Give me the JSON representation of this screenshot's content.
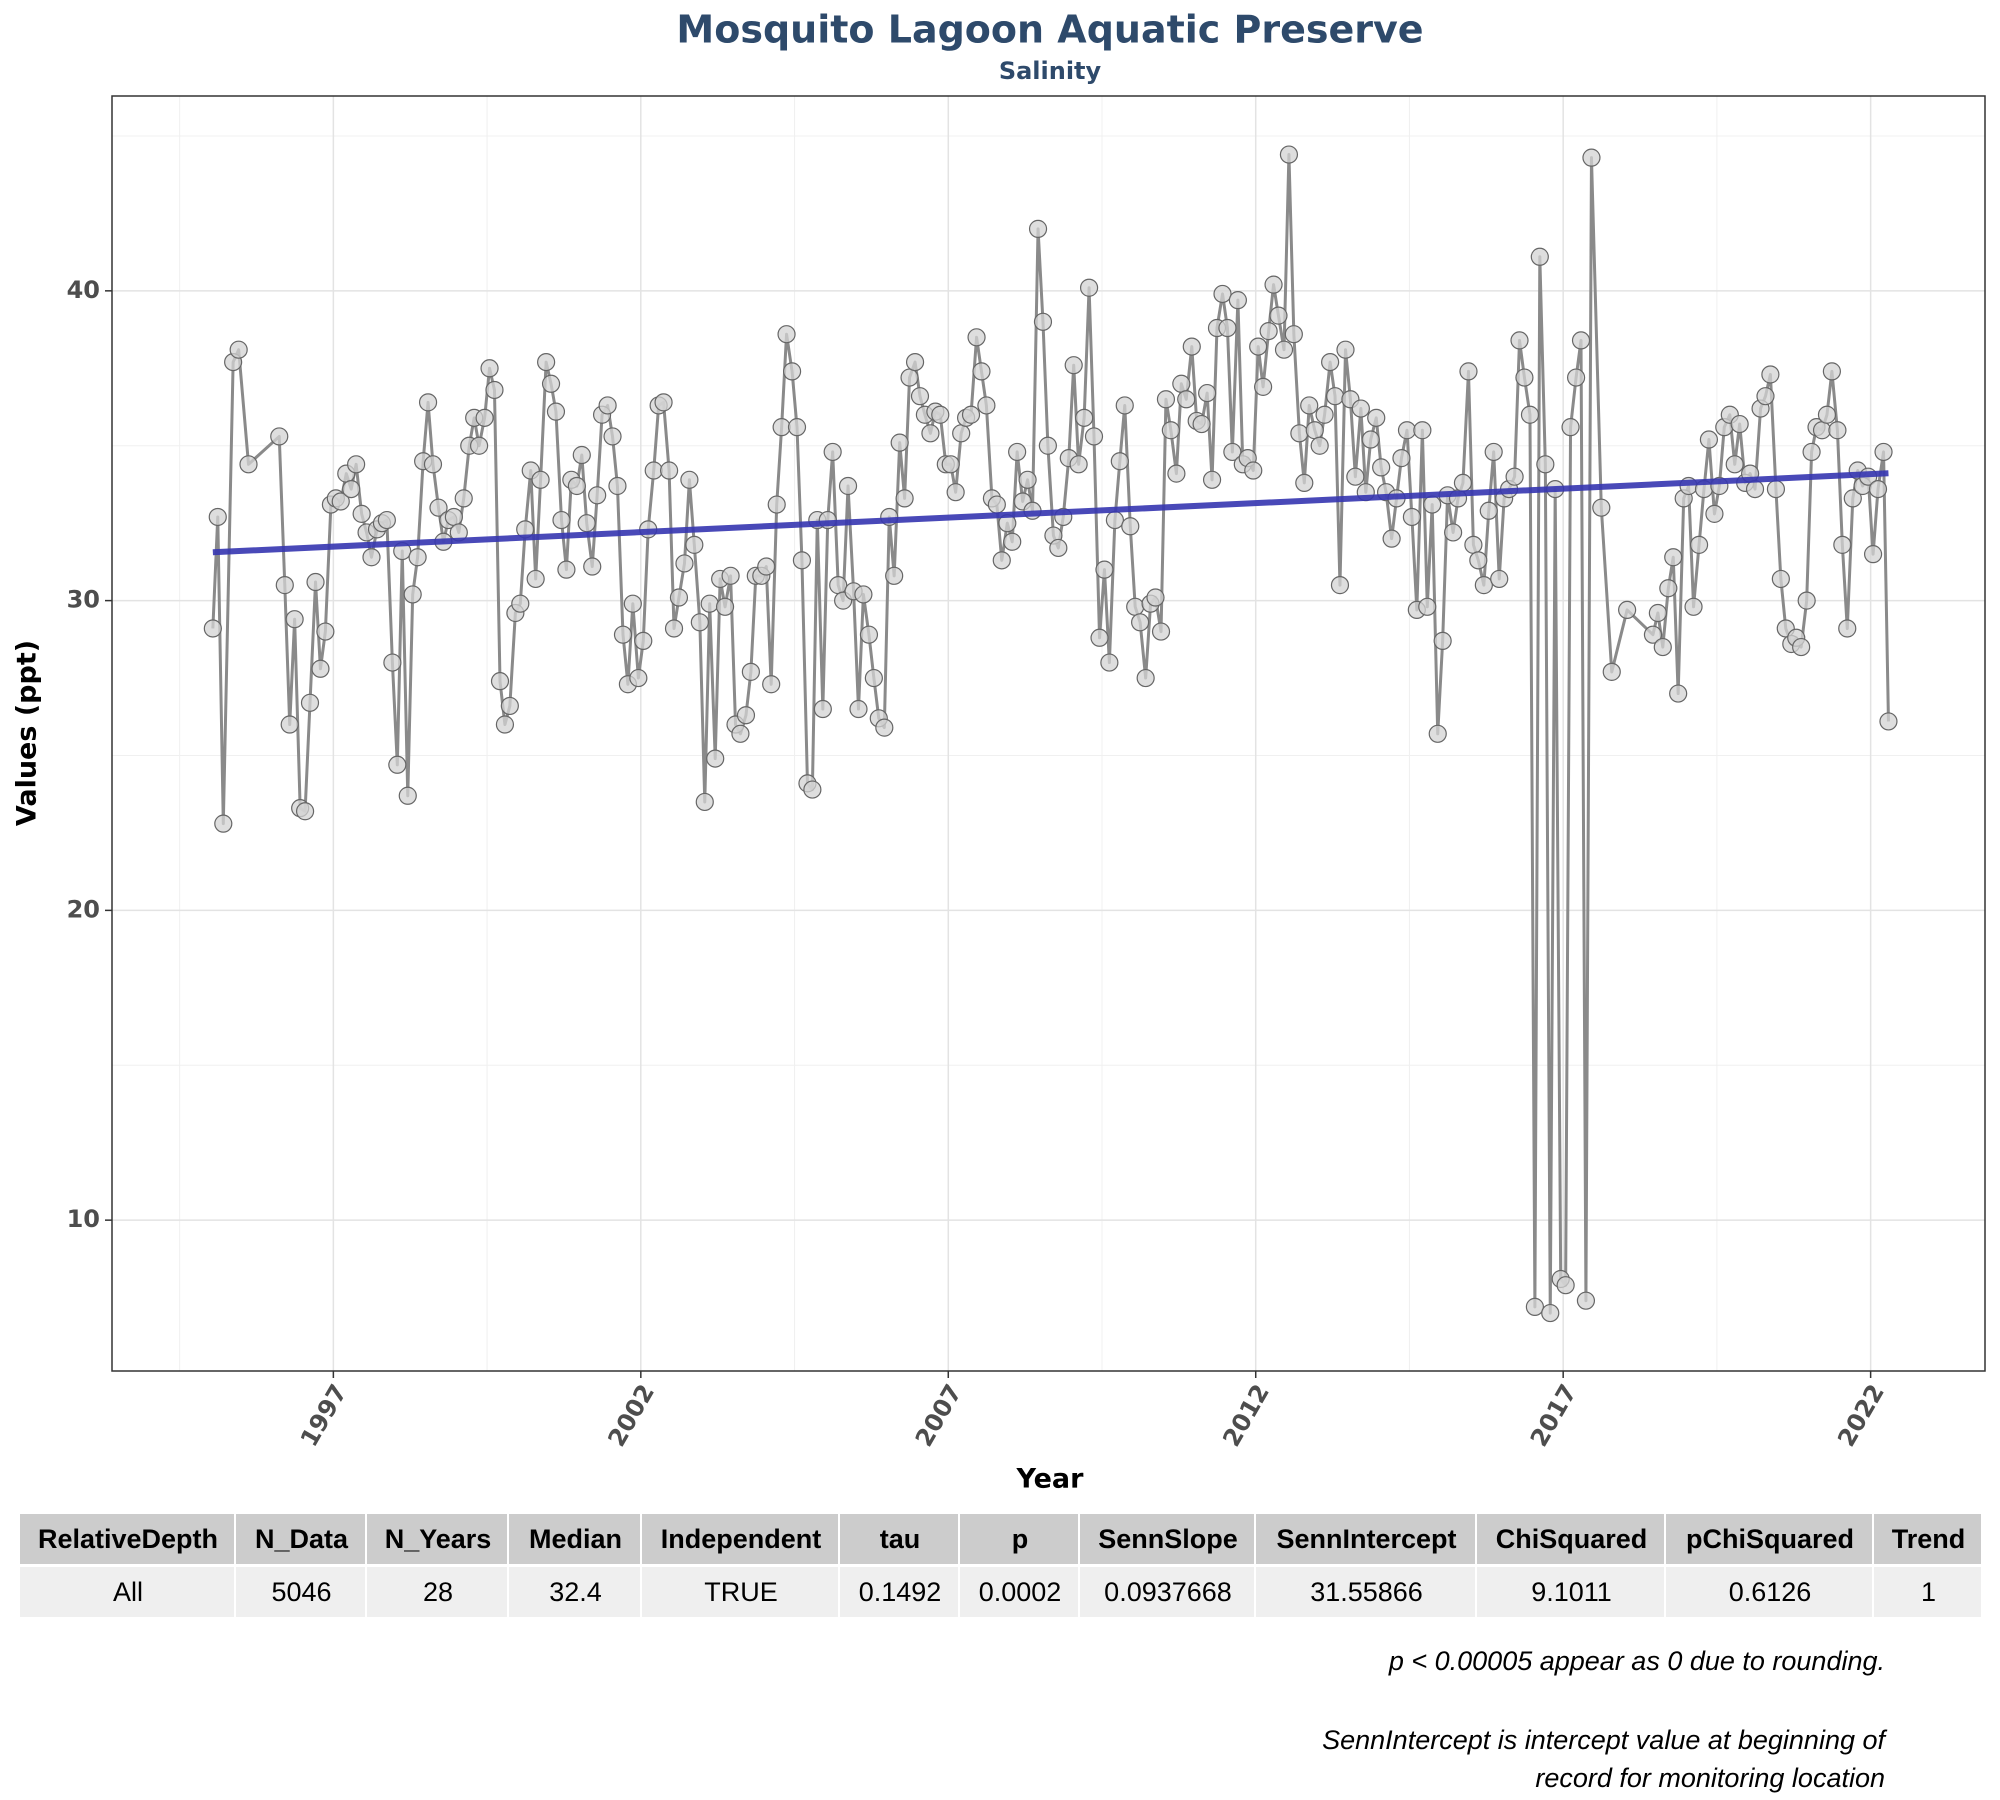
{
  "chart_data": {
    "type": "line",
    "title": "Mosquito Lagoon Aquatic Preserve",
    "subtitle": "Salinity",
    "x_label": "Year",
    "y_label": "Values (ppt)",
    "xlim": [
      1993.4,
      2023.86
    ],
    "ylim": [
      5.13,
      46.29
    ],
    "xticks": [
      1997,
      2002,
      2007,
      2012,
      2017,
      2022
    ],
    "yticks": [
      10,
      20,
      30,
      40
    ],
    "minor_xticks": [
      1994.5,
      1999.5,
      2004.5,
      2009.5,
      2014.5,
      2019.5
    ],
    "minor_yticks": [
      15,
      25,
      35,
      45
    ],
    "grid": true,
    "series": [
      {
        "color": "#8a8a8a",
        "marker_color": "#d3d3d3",
        "x": [
          1995.04,
          1995.12,
          1995.21,
          1995.37,
          1995.46,
          1995.62,
          1996.12,
          1996.21,
          1996.29,
          1996.37,
          1996.46,
          1996.54,
          1996.62,
          1996.71,
          1996.79,
          1996.87,
          1996.96,
          1997.04,
          1997.12,
          1997.21,
          1997.29,
          1997.37,
          1997.46,
          1997.54,
          1997.62,
          1997.71,
          1997.79,
          1997.87,
          1997.96,
          1998.04,
          1998.12,
          1998.21,
          1998.29,
          1998.37,
          1998.46,
          1998.54,
          1998.62,
          1998.71,
          1998.79,
          1998.87,
          1998.96,
          1999.04,
          1999.12,
          1999.21,
          1999.29,
          1999.37,
          1999.46,
          1999.54,
          1999.62,
          1999.71,
          1999.79,
          1999.87,
          1999.96,
          2000.04,
          2000.12,
          2000.21,
          2000.29,
          2000.37,
          2000.46,
          2000.54,
          2000.62,
          2000.71,
          2000.79,
          2000.87,
          2000.96,
          2001.04,
          2001.12,
          2001.21,
          2001.29,
          2001.37,
          2001.46,
          2001.54,
          2001.62,
          2001.71,
          2001.79,
          2001.87,
          2001.96,
          2002.04,
          2002.12,
          2002.21,
          2002.29,
          2002.37,
          2002.46,
          2002.54,
          2002.62,
          2002.71,
          2002.79,
          2002.87,
          2002.96,
          2003.04,
          2003.12,
          2003.21,
          2003.29,
          2003.37,
          2003.46,
          2003.54,
          2003.62,
          2003.71,
          2003.79,
          2003.87,
          2003.96,
          2004.04,
          2004.12,
          2004.21,
          2004.29,
          2004.37,
          2004.46,
          2004.54,
          2004.62,
          2004.71,
          2004.79,
          2004.87,
          2004.96,
          2005.04,
          2005.12,
          2005.21,
          2005.29,
          2005.37,
          2005.46,
          2005.54,
          2005.62,
          2005.71,
          2005.79,
          2005.87,
          2005.96,
          2006.04,
          2006.12,
          2006.21,
          2006.29,
          2006.37,
          2006.46,
          2006.54,
          2006.62,
          2006.71,
          2006.79,
          2006.87,
          2006.96,
          2007.04,
          2007.12,
          2007.21,
          2007.29,
          2007.37,
          2007.46,
          2007.54,
          2007.62,
          2007.71,
          2007.79,
          2007.87,
          2007.96,
          2008.04,
          2008.12,
          2008.21,
          2008.29,
          2008.37,
          2008.46,
          2008.54,
          2008.62,
          2008.71,
          2008.79,
          2008.87,
          2008.96,
          2009.04,
          2009.12,
          2009.21,
          2009.29,
          2009.37,
          2009.46,
          2009.54,
          2009.62,
          2009.71,
          2009.79,
          2009.87,
          2009.96,
          2010.04,
          2010.12,
          2010.21,
          2010.29,
          2010.37,
          2010.46,
          2010.54,
          2010.62,
          2010.71,
          2010.79,
          2010.87,
          2010.96,
          2011.04,
          2011.12,
          2011.21,
          2011.29,
          2011.37,
          2011.46,
          2011.54,
          2011.62,
          2011.71,
          2011.79,
          2011.87,
          2011.96,
          2012.04,
          2012.12,
          2012.21,
          2012.29,
          2012.37,
          2012.46,
          2012.54,
          2012.62,
          2012.71,
          2012.79,
          2012.87,
          2012.96,
          2013.04,
          2013.12,
          2013.21,
          2013.29,
          2013.37,
          2013.46,
          2013.54,
          2013.62,
          2013.71,
          2013.79,
          2013.87,
          2013.96,
          2014.04,
          2014.12,
          2014.21,
          2014.29,
          2014.37,
          2014.46,
          2014.54,
          2014.62,
          2014.71,
          2014.79,
          2014.87,
          2014.96,
          2015.04,
          2015.12,
          2015.21,
          2015.29,
          2015.37,
          2015.46,
          2015.54,
          2015.62,
          2015.71,
          2015.79,
          2015.87,
          2015.96,
          2016.04,
          2016.12,
          2016.21,
          2016.29,
          2016.37,
          2016.46,
          2016.54,
          2016.62,
          2016.71,
          2016.79,
          2016.87,
          2016.96,
          2017.04,
          2017.12,
          2017.21,
          2017.29,
          2017.37,
          2017.46,
          2017.62,
          2017.79,
          2018.04,
          2018.46,
          2018.54,
          2018.62,
          2018.71,
          2018.79,
          2018.87,
          2018.96,
          2019.04,
          2019.12,
          2019.21,
          2019.29,
          2019.37,
          2019.46,
          2019.54,
          2019.62,
          2019.71,
          2019.79,
          2019.87,
          2019.96,
          2020.04,
          2020.12,
          2020.21,
          2020.29,
          2020.37,
          2020.46,
          2020.54,
          2020.62,
          2020.71,
          2020.79,
          2020.87,
          2020.96,
          2021.04,
          2021.12,
          2021.21,
          2021.29,
          2021.37,
          2021.46,
          2021.54,
          2021.62,
          2021.71,
          2021.79,
          2021.87,
          2021.96,
          2022.04,
          2022.12,
          2022.21,
          2022.29
        ],
        "values": [
          29.1,
          32.7,
          22.8,
          37.7,
          38.1,
          34.4,
          35.3,
          30.5,
          26.0,
          29.4,
          23.3,
          23.2,
          26.7,
          30.6,
          27.8,
          29.0,
          33.1,
          33.3,
          33.2,
          34.1,
          33.6,
          34.4,
          32.8,
          32.2,
          31.4,
          32.3,
          32.5,
          32.6,
          28.0,
          24.7,
          31.6,
          23.7,
          30.2,
          31.4,
          34.5,
          36.4,
          34.4,
          33.0,
          31.9,
          32.6,
          32.7,
          32.2,
          33.3,
          35.0,
          35.9,
          35.0,
          35.9,
          37.5,
          36.8,
          27.4,
          26.0,
          26.6,
          29.6,
          29.9,
          32.3,
          34.2,
          30.7,
          33.9,
          37.7,
          37.0,
          36.1,
          32.6,
          31.0,
          33.9,
          33.7,
          34.7,
          32.5,
          31.1,
          33.4,
          36.0,
          36.3,
          35.3,
          33.7,
          28.9,
          27.3,
          29.9,
          27.5,
          28.7,
          32.3,
          34.2,
          36.3,
          36.4,
          34.2,
          29.1,
          30.1,
          31.2,
          33.9,
          31.8,
          29.3,
          23.5,
          29.9,
          24.9,
          30.7,
          29.8,
          30.8,
          26.0,
          25.7,
          26.3,
          27.7,
          30.8,
          30.8,
          31.1,
          27.3,
          33.1,
          35.6,
          38.6,
          37.4,
          35.6,
          31.3,
          24.1,
          23.9,
          32.6,
          26.5,
          32.6,
          34.8,
          30.5,
          30.0,
          33.7,
          30.3,
          26.5,
          30.2,
          28.9,
          27.5,
          26.2,
          25.9,
          32.7,
          30.8,
          35.1,
          33.3,
          37.2,
          37.7,
          36.6,
          36.0,
          35.4,
          36.1,
          36.0,
          34.4,
          34.4,
          33.5,
          35.4,
          35.9,
          36.0,
          38.5,
          37.4,
          36.3,
          33.3,
          33.1,
          31.3,
          32.5,
          31.9,
          34.8,
          33.2,
          33.9,
          32.9,
          42.0,
          39.0,
          35.0,
          32.1,
          31.7,
          32.7,
          34.6,
          37.6,
          34.4,
          35.9,
          40.1,
          35.3,
          28.8,
          31.0,
          28.0,
          32.6,
          34.5,
          36.3,
          32.4,
          29.8,
          29.3,
          27.5,
          29.9,
          30.1,
          29.0,
          36.5,
          35.5,
          34.1,
          37.0,
          36.5,
          38.2,
          35.8,
          35.7,
          36.7,
          33.9,
          38.8,
          39.9,
          38.8,
          34.8,
          39.7,
          34.4,
          34.6,
          34.2,
          38.2,
          36.9,
          38.7,
          40.2,
          39.2,
          38.1,
          44.4,
          38.6,
          35.4,
          33.8,
          36.3,
          35.5,
          35.0,
          36.0,
          37.7,
          36.6,
          30.5,
          38.1,
          36.5,
          34.0,
          36.2,
          33.5,
          35.2,
          35.9,
          34.3,
          33.5,
          32.0,
          33.3,
          34.6,
          35.5,
          32.7,
          29.7,
          35.5,
          29.8,
          33.1,
          25.7,
          28.7,
          33.4,
          32.2,
          33.3,
          33.8,
          37.4,
          31.8,
          31.3,
          30.5,
          32.9,
          34.8,
          30.7,
          33.3,
          33.6,
          34.0,
          38.4,
          37.2,
          36.0,
          7.2,
          41.1,
          34.4,
          7.0,
          33.6,
          8.1,
          7.9,
          35.6,
          37.2,
          38.4,
          7.4,
          44.3,
          33.0,
          27.7,
          29.7,
          28.9,
          29.6,
          28.5,
          30.4,
          31.4,
          27.0,
          33.3,
          33.7,
          29.8,
          31.8,
          33.6,
          35.2,
          32.8,
          33.7,
          35.6,
          36.0,
          34.4,
          35.7,
          33.8,
          34.1,
          33.6,
          36.2,
          36.6,
          37.3,
          33.6,
          30.7,
          29.1,
          28.6,
          28.8,
          28.5,
          30.0,
          34.8,
          35.6,
          35.5,
          36.0,
          37.4,
          35.5,
          31.8,
          29.1,
          33.3,
          34.2,
          33.7,
          34.0,
          31.5,
          33.6,
          34.8,
          26.1
        ]
      }
    ],
    "trend": {
      "color": "#3535b0",
      "x": [
        1995.04,
        2022.29
      ],
      "values": [
        31.56,
        34.11
      ]
    }
  },
  "table": {
    "columns": [
      "RelativeDepth",
      "N_Data",
      "N_Years",
      "Median",
      "Independent",
      "tau",
      "p",
      "SennSlope",
      "SennIntercept",
      "ChiSquared",
      "pChiSquared",
      "Trend"
    ],
    "rows": [
      [
        "All",
        5046,
        28,
        32.4,
        "TRUE",
        0.1492,
        0.0002,
        0.0937668,
        31.55866,
        9.1011,
        0.6126,
        1
      ]
    ]
  },
  "notes": [
    "p < 0.00005 appear as 0 due to rounding.",
    "SennIntercept is intercept value at beginning of",
    "record for monitoring location"
  ]
}
